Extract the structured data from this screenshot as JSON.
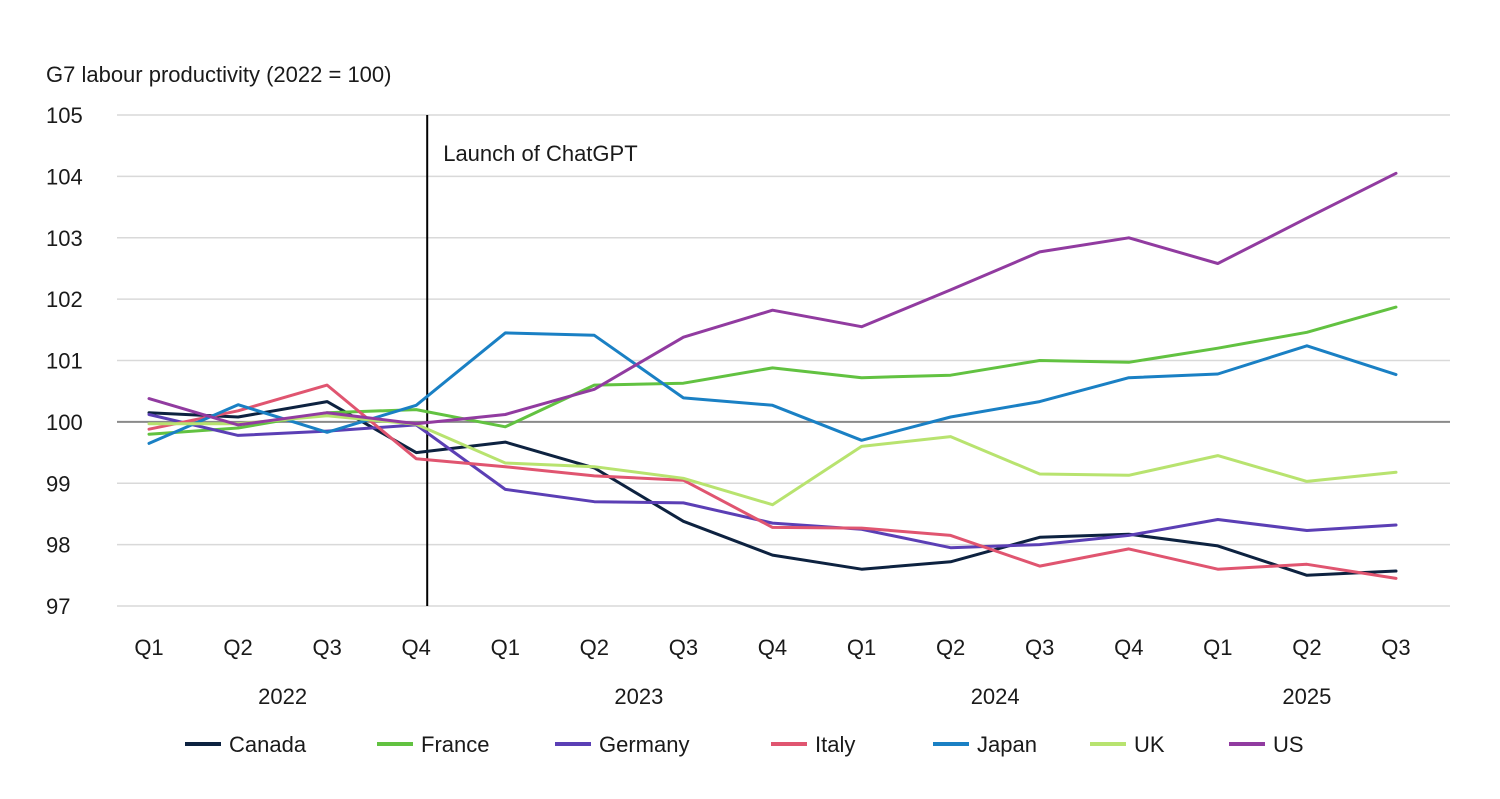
{
  "chart_data": {
    "type": "line",
    "ylabel": "G7 labour productivity (2022 = 100)",
    "ylim": [
      97,
      105
    ],
    "yticks": [
      "97",
      "98",
      "99",
      "100",
      "101",
      "102",
      "103",
      "104",
      "105"
    ],
    "reference_value": 100,
    "quarters": [
      "Q1",
      "Q2",
      "Q3",
      "Q4",
      "Q1",
      "Q2",
      "Q3",
      "Q4",
      "Q1",
      "Q2",
      "Q3",
      "Q4",
      "Q1",
      "Q2",
      "Q3"
    ],
    "years": [
      {
        "label": "2022",
        "first_index": 0,
        "last_index": 3
      },
      {
        "label": "2023",
        "first_index": 4,
        "last_index": 7
      },
      {
        "label": "2024",
        "first_index": 8,
        "last_index": 11
      },
      {
        "label": "2025",
        "first_index": 12,
        "last_index": 14
      }
    ],
    "annotation": {
      "text": "Launch of ChatGPT",
      "after_category_index": 3
    },
    "legend_position": "bottom",
    "grid": true,
    "series": [
      {
        "name": "Canada",
        "color": "#0d2240",
        "values": [
          100.15,
          100.08,
          100.33,
          99.5,
          99.67,
          99.25,
          98.38,
          97.83,
          97.6,
          97.72,
          98.12,
          98.17,
          97.98,
          97.5,
          97.57
        ]
      },
      {
        "name": "France",
        "color": "#62c241",
        "values": [
          99.8,
          99.9,
          100.15,
          100.2,
          99.92,
          100.6,
          100.63,
          100.88,
          100.72,
          100.76,
          101.0,
          100.97,
          101.2,
          101.46,
          101.87
        ]
      },
      {
        "name": "Germany",
        "color": "#5b3fb5",
        "values": [
          100.12,
          99.78,
          99.85,
          99.95,
          98.9,
          98.7,
          98.68,
          98.35,
          98.25,
          97.95,
          98.0,
          98.15,
          98.41,
          98.23,
          98.32
        ]
      },
      {
        "name": "Italy",
        "color": "#e05570",
        "values": [
          99.88,
          100.18,
          100.6,
          99.4,
          99.27,
          99.12,
          99.05,
          98.28,
          98.27,
          98.15,
          97.65,
          97.93,
          97.6,
          97.68,
          97.45
        ]
      },
      {
        "name": "Japan",
        "color": "#1a80c4",
        "values": [
          99.65,
          100.28,
          99.83,
          100.27,
          101.45,
          101.41,
          100.39,
          100.27,
          99.7,
          100.08,
          100.33,
          100.72,
          100.78,
          101.24,
          100.77
        ]
      },
      {
        "name": "UK",
        "color": "#b8e36f",
        "values": [
          99.97,
          99.97,
          100.1,
          99.96,
          99.33,
          99.27,
          99.08,
          98.65,
          99.6,
          99.76,
          99.15,
          99.13,
          99.45,
          99.03,
          99.18
        ]
      },
      {
        "name": "US",
        "color": "#913ba0",
        "values": [
          100.38,
          99.95,
          100.15,
          99.97,
          100.12,
          100.53,
          101.38,
          101.82,
          101.55,
          102.15,
          102.77,
          103.0,
          102.58,
          103.32,
          104.05
        ]
      }
    ]
  }
}
